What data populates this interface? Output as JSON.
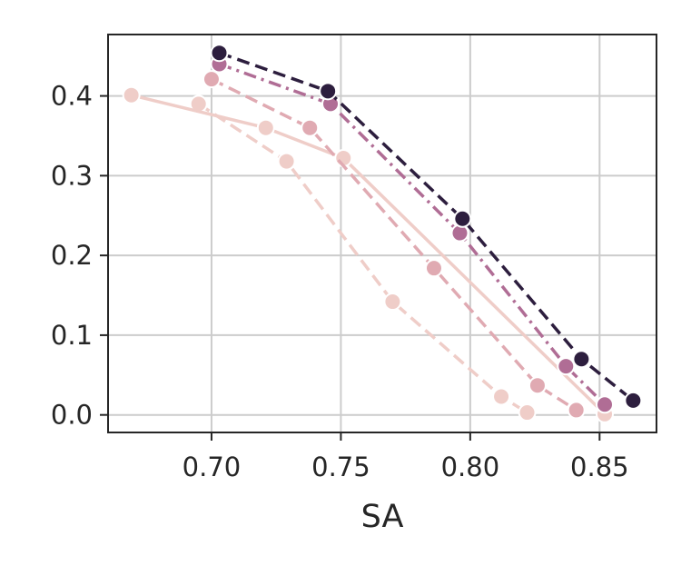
{
  "chart_data": {
    "type": "line",
    "xlabel": "SA",
    "ylabel": "",
    "xlim": [
      0.66,
      0.872
    ],
    "ylim": [
      -0.022,
      0.477
    ],
    "xticks": [
      0.7,
      0.75,
      0.8,
      0.85
    ],
    "yticks": [
      0.0,
      0.1,
      0.2,
      0.3,
      0.4
    ],
    "xtick_labels": [
      "0.70",
      "0.75",
      "0.80",
      "0.85"
    ],
    "ytick_labels": [
      "0.0",
      "0.1",
      "0.2",
      "0.3",
      "0.4"
    ],
    "grid": true,
    "legend": false,
    "series": [
      {
        "color": "#2d1e3e",
        "dash": "dashed",
        "x": [
          0.703,
          0.745,
          0.797,
          0.843,
          0.863
        ],
        "y": [
          0.454,
          0.406,
          0.246,
          0.07,
          0.018
        ]
      },
      {
        "color": "#b06d95",
        "dash": "dashdot",
        "x": [
          0.703,
          0.746,
          0.796,
          0.837,
          0.852
        ],
        "y": [
          0.44,
          0.39,
          0.228,
          0.061,
          0.013
        ]
      },
      {
        "color": "#e0aab2",
        "dash": "dashed",
        "x": [
          0.7,
          0.738,
          0.786,
          0.826,
          0.841
        ],
        "y": [
          0.421,
          0.36,
          0.184,
          0.037,
          0.006
        ]
      },
      {
        "color": "#efcdc8",
        "dash": "solid",
        "x": [
          0.669,
          0.721,
          0.751,
          0.852
        ],
        "y": [
          0.401,
          0.36,
          0.322,
          0.001
        ]
      },
      {
        "color": "#efcdc8",
        "dash": "dashed",
        "x": [
          0.695,
          0.729,
          0.77,
          0.812,
          0.822
        ],
        "y": [
          0.39,
          0.318,
          0.142,
          0.023,
          0.003
        ]
      }
    ]
  }
}
